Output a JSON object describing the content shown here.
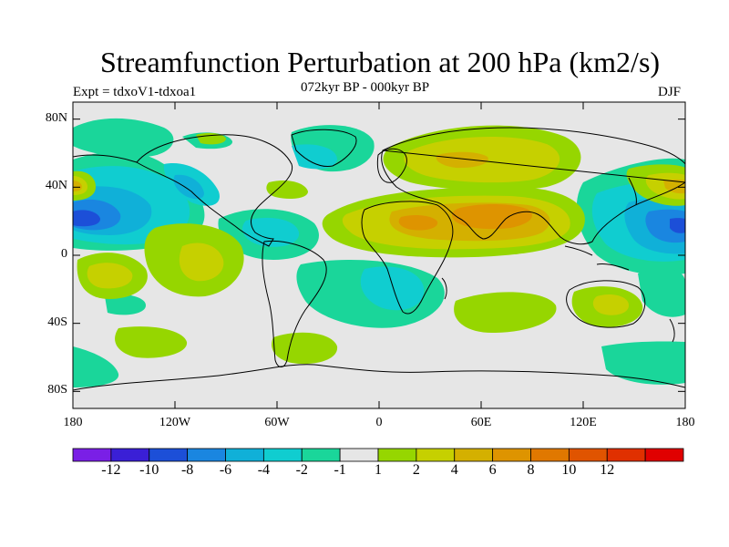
{
  "title": "Streamfunction Perturbation at 200 hPa (km2/s)",
  "experiment": "Expt = tdxoV1-tdxoa1",
  "subtitle": "072kyr BP - 000kyr BP",
  "season": "DJF",
  "map": {
    "lon_range": [
      -180,
      180
    ],
    "lat_range": [
      -90,
      90
    ],
    "lat_ticks": [
      {
        "value": 80,
        "label": "80N"
      },
      {
        "value": 40,
        "label": "40N"
      },
      {
        "value": 0,
        "label": "0"
      },
      {
        "value": -40,
        "label": "40S"
      },
      {
        "value": -80,
        "label": "80S"
      }
    ],
    "lon_ticks": [
      {
        "value": -180,
        "label": "180"
      },
      {
        "value": -120,
        "label": "120W"
      },
      {
        "value": -60,
        "label": "60W"
      },
      {
        "value": 0,
        "label": "0"
      },
      {
        "value": 60,
        "label": "60E"
      },
      {
        "value": 120,
        "label": "120E"
      },
      {
        "value": 180,
        "label": "180"
      }
    ],
    "background_color": "#e6e6e6"
  },
  "colorbar": {
    "colors": [
      "#7a1fe6",
      "#3a1fd6",
      "#1c4fd8",
      "#1a86e0",
      "#10b0d8",
      "#10cdd0",
      "#1ad69a",
      "#e6e6e6",
      "#96d600",
      "#c6d000",
      "#d4b000",
      "#de9400",
      "#e07800",
      "#e05400",
      "#e03000",
      "#e00000"
    ],
    "labels": [
      "-12",
      "-10",
      "-8",
      "-6",
      "-4",
      "-2",
      "-1",
      "1",
      "2",
      "4",
      "6",
      "8",
      "10",
      "12"
    ]
  }
}
